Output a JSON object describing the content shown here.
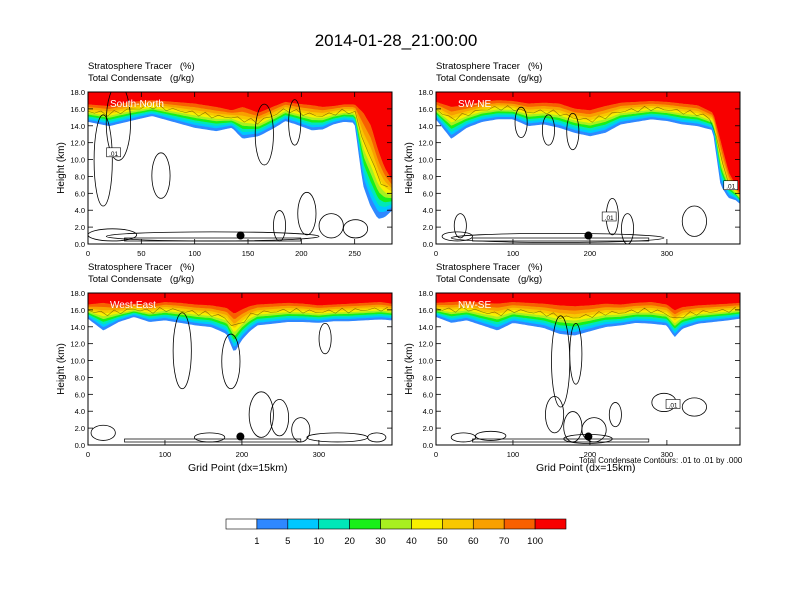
{
  "page": {
    "title": "2014-01-28_21:00:00"
  },
  "chart_data": {
    "type": "heatmap",
    "panels": [
      {
        "id": "south-north",
        "section_label": "South-North",
        "title_lines": [
          "Stratosphere Tracer   (%)",
          "Total Condensate   (g/kg)"
        ],
        "ylabel": "Height (km)",
        "xlabel": "",
        "xlim": [
          0,
          285
        ],
        "xticks": [
          0,
          50,
          100,
          150,
          200,
          250
        ],
        "ylim": [
          0,
          18
        ],
        "yticks": [
          "0.0",
          "2.0",
          "4.0",
          "6.0",
          "8.0",
          "10.0",
          "12.0",
          "14.0",
          "16.0",
          "18.0"
        ],
        "marker_x": 143,
        "contour_labels": [
          {
            "x": 24,
            "y": 10.8,
            "text": ".01"
          }
        ],
        "tracer_boundary": {
          "x": [
            0,
            20,
            40,
            60,
            80,
            100,
            120,
            135,
            145,
            160,
            175,
            185,
            195,
            210,
            220,
            230,
            240,
            250,
            258,
            265,
            272,
            278,
            285
          ],
          "z100": [
            16.5,
            16.3,
            16.8,
            17.0,
            16.8,
            16.6,
            16.2,
            15.8,
            16.2,
            15.5,
            16.3,
            16.8,
            16.6,
            16.4,
            16.2,
            16.3,
            16.5,
            16.5,
            15.5,
            14.0,
            11.0,
            9.0,
            7.5
          ],
          "z1": [
            14.5,
            14.0,
            14.6,
            15.2,
            14.5,
            13.8,
            13.4,
            13.8,
            12.5,
            12.8,
            13.8,
            14.6,
            14.2,
            13.5,
            13.6,
            14.2,
            14.5,
            14.4,
            7.0,
            4.5,
            3.0,
            3.2,
            4.0
          ]
        }
      },
      {
        "id": "sw-ne",
        "section_label": "SW-NE",
        "title_lines": [
          "Stratosphere Tracer   (%)",
          "Total Condensate   (g/kg)"
        ],
        "ylabel": "Height (km)",
        "xlabel": "",
        "xlim": [
          0,
          395
        ],
        "xticks": [
          0,
          100,
          200,
          300
        ],
        "ylim": [
          0,
          18
        ],
        "yticks": [
          "0.0",
          "2.0",
          "4.0",
          "6.0",
          "8.0",
          "10.0",
          "12.0",
          "14.0",
          "16.0",
          "18.0"
        ],
        "marker_x": 198,
        "contour_labels": [
          {
            "x": 225,
            "y": 3.2,
            "text": ".01"
          },
          {
            "x": 383,
            "y": 6.9,
            "text": ".01"
          }
        ],
        "tracer_boundary": {
          "x": [
            0,
            20,
            40,
            60,
            80,
            100,
            120,
            140,
            160,
            180,
            200,
            220,
            240,
            260,
            280,
            300,
            320,
            340,
            360,
            370,
            380,
            390,
            395
          ],
          "z100": [
            16.8,
            16.2,
            16.4,
            16.8,
            17.0,
            16.9,
            16.6,
            16.7,
            16.6,
            16.0,
            15.8,
            16.3,
            16.7,
            16.8,
            16.9,
            16.8,
            16.6,
            16.4,
            15.5,
            12.0,
            8.5,
            6.8,
            6.0
          ],
          "z1": [
            14.8,
            12.5,
            13.8,
            14.5,
            14.8,
            14.8,
            14.0,
            14.2,
            13.8,
            13.2,
            12.8,
            13.2,
            14.2,
            14.5,
            14.8,
            14.6,
            14.2,
            14.0,
            13.5,
            7.0,
            5.5,
            5.2,
            4.8
          ]
        }
      },
      {
        "id": "west-east",
        "section_label": "West-East",
        "title_lines": [
          "Stratosphere Tracer   (%)",
          "Total Condensate   (g/kg)"
        ],
        "ylabel": "Height (km)",
        "xlabel": "Grid Point (dx=15km)",
        "xlim": [
          0,
          395
        ],
        "xticks": [
          0,
          100,
          200,
          300
        ],
        "ylim": [
          0,
          18
        ],
        "yticks": [
          "0.0",
          "2.0",
          "4.0",
          "6.0",
          "8.0",
          "10.0",
          "12.0",
          "14.0",
          "16.0",
          "18.0"
        ],
        "marker_x": 198,
        "contour_labels": [],
        "tracer_boundary": {
          "x": [
            0,
            20,
            40,
            60,
            80,
            100,
            120,
            140,
            160,
            180,
            190,
            200,
            210,
            220,
            240,
            260,
            280,
            300,
            320,
            340,
            360,
            380,
            395
          ],
          "z100": [
            16.6,
            16.8,
            16.5,
            16.7,
            16.6,
            16.9,
            16.8,
            16.6,
            16.5,
            16.2,
            15.5,
            16.0,
            16.4,
            16.6,
            16.7,
            16.8,
            16.7,
            16.5,
            16.6,
            16.7,
            16.8,
            16.9,
            16.7
          ],
          "z1": [
            15.0,
            13.6,
            14.6,
            15.2,
            14.6,
            14.8,
            14.5,
            14.2,
            14.0,
            13.2,
            11.0,
            12.5,
            13.5,
            14.2,
            14.4,
            14.6,
            14.6,
            14.5,
            14.7,
            14.7,
            14.8,
            14.9,
            14.8
          ]
        }
      },
      {
        "id": "nw-se",
        "section_label": "NW-SE",
        "title_lines": [
          "Stratosphere Tracer   (%)",
          "Total Condensate   (g/kg)"
        ],
        "ylabel": "Height (km)",
        "xlabel": "Grid Point (dx=15km)",
        "xlim": [
          0,
          395
        ],
        "xticks": [
          0,
          100,
          200,
          300
        ],
        "ylim": [
          0,
          18
        ],
        "yticks": [
          "0.0",
          "2.0",
          "4.0",
          "6.0",
          "8.0",
          "10.0",
          "12.0",
          "14.0",
          "16.0",
          "18.0"
        ],
        "marker_x": 198,
        "contour_labels": [
          {
            "x": 308,
            "y": 4.8,
            "text": ".01"
          }
        ],
        "tracer_boundary": {
          "x": [
            0,
            20,
            40,
            60,
            80,
            100,
            120,
            140,
            160,
            180,
            200,
            220,
            240,
            260,
            280,
            300,
            310,
            320,
            340,
            360,
            380,
            395
          ],
          "z100": [
            16.8,
            16.9,
            17.0,
            16.8,
            16.7,
            16.9,
            16.8,
            16.7,
            16.5,
            16.4,
            16.5,
            16.7,
            16.6,
            16.8,
            16.9,
            16.6,
            15.9,
            16.3,
            16.5,
            16.6,
            16.7,
            16.8
          ],
          "z1": [
            15.2,
            14.5,
            14.8,
            14.2,
            13.6,
            14.5,
            14.2,
            13.9,
            13.2,
            13.0,
            13.5,
            14.0,
            14.2,
            14.5,
            14.4,
            14.2,
            12.8,
            13.8,
            14.4,
            14.6,
            14.8,
            15.0
          ]
        }
      }
    ],
    "colorbar": {
      "labels": [
        "1",
        "5",
        "10",
        "20",
        "30",
        "40",
        "50",
        "60",
        "70",
        "100"
      ],
      "colors": [
        "#ffffff",
        "#2f88ff",
        "#00c8ff",
        "#00e8b8",
        "#18f018",
        "#a8f020",
        "#f8f000",
        "#f8c800",
        "#f8a000",
        "#f86000",
        "#f80000"
      ]
    },
    "annotation": "Total Condensate Contours: .01 to .01 by .000"
  }
}
